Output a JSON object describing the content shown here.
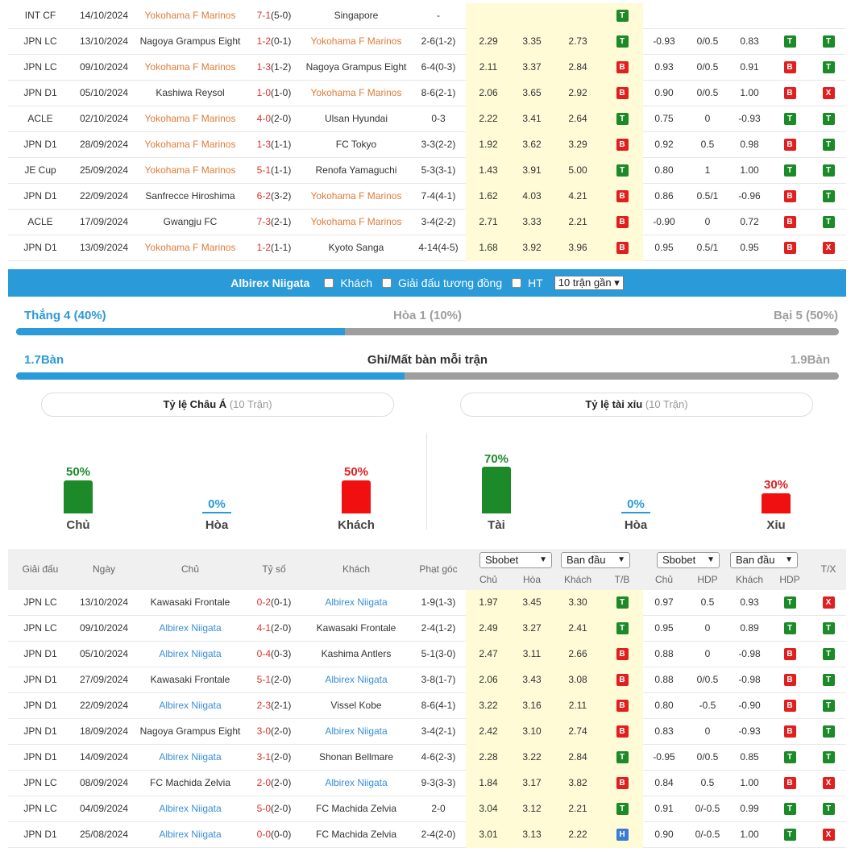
{
  "table_top": {
    "rows": [
      {
        "league": "INT CF",
        "date": "14/10/2024",
        "home": "Yokohama F Marinos",
        "home_hl": true,
        "score": "7-1",
        "ht": "(5-0)",
        "away": "Singapore",
        "away_hl": false,
        "corner": "-",
        "oh": "",
        "od": "",
        "oa": "",
        "tb": "T",
        "ah": "",
        "hdp": "",
        "aa": "",
        "hdp2": "",
        "tx": ""
      },
      {
        "league": "JPN LC",
        "date": "13/10/2024",
        "home": "Nagoya Grampus Eight",
        "home_hl": false,
        "score": "1-2",
        "ht": "(0-1)",
        "away": "Yokohama F Marinos",
        "away_hl": true,
        "corner": "2-6(1-2)",
        "oh": "2.29",
        "od": "3.35",
        "oa": "2.73",
        "tb": "T",
        "ah": "-0.93",
        "hdp": "0/0.5",
        "aa": "0.83",
        "hdp2": "T",
        "tx": "T"
      },
      {
        "league": "JPN LC",
        "date": "09/10/2024",
        "home": "Yokohama F Marinos",
        "home_hl": true,
        "score": "1-3",
        "ht": "(1-2)",
        "away": "Nagoya Grampus Eight",
        "away_hl": false,
        "corner": "6-4(0-3)",
        "oh": "2.11",
        "od": "3.37",
        "oa": "2.84",
        "tb": "B",
        "ah": "0.93",
        "hdp": "0/0.5",
        "aa": "0.91",
        "hdp2": "B",
        "tx": "T"
      },
      {
        "league": "JPN D1",
        "date": "05/10/2024",
        "home": "Kashiwa Reysol",
        "home_hl": false,
        "score": "1-0",
        "ht": "(1-0)",
        "away": "Yokohama F Marinos",
        "away_hl": true,
        "corner": "8-6(2-1)",
        "oh": "2.06",
        "od": "3.65",
        "oa": "2.92",
        "tb": "B",
        "ah": "0.90",
        "hdp": "0/0.5",
        "aa": "1.00",
        "hdp2": "B",
        "tx": "X"
      },
      {
        "league": "ACLE",
        "date": "02/10/2024",
        "home": "Yokohama F Marinos",
        "home_hl": true,
        "score": "4-0",
        "ht": "(2-0)",
        "away": "Ulsan Hyundai",
        "away_hl": false,
        "corner": "0-3",
        "oh": "2.22",
        "od": "3.41",
        "oa": "2.64",
        "tb": "T",
        "ah": "0.75",
        "hdp": "0",
        "aa": "-0.93",
        "hdp2": "T",
        "tx": "T"
      },
      {
        "league": "JPN D1",
        "date": "28/09/2024",
        "home": "Yokohama F Marinos",
        "home_hl": true,
        "score": "1-3",
        "ht": "(1-1)",
        "away": "FC Tokyo",
        "away_hl": false,
        "corner": "3-3(2-2)",
        "oh": "1.92",
        "od": "3.62",
        "oa": "3.29",
        "tb": "B",
        "ah": "0.92",
        "hdp": "0.5",
        "aa": "0.98",
        "hdp2": "B",
        "tx": "T"
      },
      {
        "league": "JE Cup",
        "date": "25/09/2024",
        "home": "Yokohama F Marinos",
        "home_hl": true,
        "score": "5-1",
        "ht": "(1-1)",
        "away": "Renofa Yamaguchi",
        "away_hl": false,
        "corner": "5-3(3-1)",
        "oh": "1.43",
        "od": "3.91",
        "oa": "5.00",
        "tb": "T",
        "ah": "0.80",
        "hdp": "1",
        "aa": "1.00",
        "hdp2": "T",
        "tx": "T"
      },
      {
        "league": "JPN D1",
        "date": "22/09/2024",
        "home": "Sanfrecce Hiroshima",
        "home_hl": false,
        "score": "6-2",
        "ht": "(3-2)",
        "away": "Yokohama F Marinos",
        "away_hl": true,
        "corner": "7-4(4-1)",
        "oh": "1.62",
        "od": "4.03",
        "oa": "4.21",
        "tb": "B",
        "ah": "0.86",
        "hdp": "0.5/1",
        "aa": "-0.96",
        "hdp2": "B",
        "tx": "T"
      },
      {
        "league": "ACLE",
        "date": "17/09/2024",
        "home": "Gwangju FC",
        "home_hl": false,
        "score": "7-3",
        "ht": "(2-1)",
        "away": "Yokohama F Marinos",
        "away_hl": true,
        "corner": "3-4(2-2)",
        "oh": "2.71",
        "od": "3.33",
        "oa": "2.21",
        "tb": "B",
        "ah": "-0.90",
        "hdp": "0",
        "aa": "0.72",
        "hdp2": "B",
        "tx": "T"
      },
      {
        "league": "JPN D1",
        "date": "13/09/2024",
        "home": "Yokohama F Marinos",
        "home_hl": true,
        "score": "1-2",
        "ht": "(1-1)",
        "away": "Kyoto Sanga",
        "away_hl": false,
        "corner": "4-14(4-5)",
        "oh": "1.68",
        "od": "3.92",
        "oa": "3.96",
        "tb": "B",
        "ah": "0.95",
        "hdp": "0.5/1",
        "aa": "0.95",
        "hdp2": "B",
        "tx": "X"
      }
    ]
  },
  "filter_bar": {
    "team": "Albirex Niigata",
    "away_label": "Khách",
    "same_league_label": "Giải đấu tương đồng",
    "ht_label": "HT",
    "recent_select": "10 trận gần"
  },
  "summary": {
    "win_label": "Thắng 4 (40%)",
    "draw_label": "Hòa 1 (10%)",
    "loss_label": "Bại 5 (50%)",
    "win_fraction": 0.4,
    "goals_for": "1.7Bàn",
    "goals_title": "Ghi/Mất bàn mỗi trận",
    "goals_against": "1.9Bàn",
    "goals_fraction": 0.472
  },
  "asian": {
    "title": "Tỷ lệ Châu Á",
    "sub": "(10 Trận)",
    "home_pct": "50%",
    "home_label": "Chủ",
    "home_value": 50,
    "draw_pct": "0%",
    "draw_label": "Hòa",
    "draw_value": 0,
    "away_pct": "50%",
    "away_label": "Khách",
    "away_value": 50
  },
  "overunder": {
    "title": "Tỷ lệ tài xỉu",
    "sub": "(10 Trận)",
    "over_pct": "70%",
    "over_label": "Tài",
    "over_value": 70,
    "draw_pct": "0%",
    "draw_label": "Hòa",
    "draw_value": 0,
    "under_pct": "30%",
    "under_label": "Xỉu",
    "under_value": 30
  },
  "colors": {
    "accent": "#2a9ad9",
    "green": "#1d8a2a",
    "red": "#e02020",
    "highlight": "#fffbd6",
    "team_orange": "#e07b39"
  },
  "header": {
    "league": "Giải đấu",
    "date": "Ngày",
    "home": "Chủ",
    "score": "Tỷ số",
    "away": "Khách",
    "corner": "Phạt góc",
    "book1": "Sbobet",
    "type1": "Ban đầu",
    "book2": "Sbobet",
    "type2": "Ban đầu",
    "h_home": "Chủ",
    "h_draw": "Hòa",
    "h_away": "Khách",
    "h_tb": "T/B",
    "h_home2": "Chủ",
    "h_hdp": "HDP",
    "h_away2": "Khách",
    "h_hdp2": "HDP",
    "h_tx": "T/X"
  },
  "table_bottom": {
    "rows": [
      {
        "league": "JPN LC",
        "date": "13/10/2024",
        "home": "Kawasaki Frontale",
        "home_hl": false,
        "score": "0-2",
        "ht": "(0-1)",
        "away": "Albirex Niigata",
        "away_hl": true,
        "corner": "1-9(1-3)",
        "oh": "1.97",
        "od": "3.45",
        "oa": "3.30",
        "tb": "T",
        "ah": "0.97",
        "hdp": "0.5",
        "aa": "0.93",
        "hdp2": "T",
        "tx": "X"
      },
      {
        "league": "JPN LC",
        "date": "09/10/2024",
        "home": "Albirex Niigata",
        "home_hl": true,
        "score": "4-1",
        "ht": "(2-0)",
        "away": "Kawasaki Frontale",
        "away_hl": false,
        "corner": "2-4(1-2)",
        "oh": "2.49",
        "od": "3.27",
        "oa": "2.41",
        "tb": "T",
        "ah": "0.95",
        "hdp": "0",
        "aa": "0.89",
        "hdp2": "T",
        "tx": "T"
      },
      {
        "league": "JPN D1",
        "date": "05/10/2024",
        "home": "Albirex Niigata",
        "home_hl": true,
        "score": "0-4",
        "ht": "(0-3)",
        "away": "Kashima Antlers",
        "away_hl": false,
        "corner": "5-1(3-0)",
        "oh": "2.47",
        "od": "3.11",
        "oa": "2.66",
        "tb": "B",
        "ah": "0.88",
        "hdp": "0",
        "aa": "-0.98",
        "hdp2": "B",
        "tx": "T"
      },
      {
        "league": "JPN D1",
        "date": "27/09/2024",
        "home": "Kawasaki Frontale",
        "home_hl": false,
        "score": "5-1",
        "ht": "(2-0)",
        "away": "Albirex Niigata",
        "away_hl": true,
        "corner": "3-8(1-7)",
        "oh": "2.06",
        "od": "3.43",
        "oa": "3.08",
        "tb": "B",
        "ah": "0.88",
        "hdp": "0/0.5",
        "aa": "-0.98",
        "hdp2": "B",
        "tx": "T"
      },
      {
        "league": "JPN D1",
        "date": "22/09/2024",
        "home": "Albirex Niigata",
        "home_hl": true,
        "score": "2-3",
        "ht": "(2-1)",
        "away": "Vissel Kobe",
        "away_hl": false,
        "corner": "8-6(4-1)",
        "oh": "3.22",
        "od": "3.16",
        "oa": "2.11",
        "tb": "B",
        "ah": "0.80",
        "hdp": "-0.5",
        "aa": "-0.90",
        "hdp2": "B",
        "tx": "T"
      },
      {
        "league": "JPN D1",
        "date": "18/09/2024",
        "home": "Nagoya Grampus Eight",
        "home_hl": false,
        "score": "3-0",
        "ht": "(2-0)",
        "away": "Albirex Niigata",
        "away_hl": true,
        "corner": "3-4(2-1)",
        "oh": "2.42",
        "od": "3.10",
        "oa": "2.74",
        "tb": "B",
        "ah": "0.83",
        "hdp": "0",
        "aa": "-0.93",
        "hdp2": "B",
        "tx": "T"
      },
      {
        "league": "JPN D1",
        "date": "14/09/2024",
        "home": "Albirex Niigata",
        "home_hl": true,
        "score": "3-1",
        "ht": "(2-0)",
        "away": "Shonan Bellmare",
        "away_hl": false,
        "corner": "4-6(2-3)",
        "oh": "2.28",
        "od": "3.22",
        "oa": "2.84",
        "tb": "T",
        "ah": "-0.95",
        "hdp": "0/0.5",
        "aa": "0.85",
        "hdp2": "T",
        "tx": "T"
      },
      {
        "league": "JPN LC",
        "date": "08/09/2024",
        "home": "FC Machida Zelvia",
        "home_hl": false,
        "score": "2-0",
        "ht": "(2-0)",
        "away": "Albirex Niigata",
        "away_hl": true,
        "corner": "9-3(3-3)",
        "oh": "1.84",
        "od": "3.17",
        "oa": "3.82",
        "tb": "B",
        "ah": "0.84",
        "hdp": "0.5",
        "aa": "1.00",
        "hdp2": "B",
        "tx": "X"
      },
      {
        "league": "JPN LC",
        "date": "04/09/2024",
        "home": "Albirex Niigata",
        "home_hl": true,
        "score": "5-0",
        "ht": "(2-0)",
        "away": "FC Machida Zelvia",
        "away_hl": false,
        "corner": "2-0",
        "oh": "3.04",
        "od": "3.12",
        "oa": "2.21",
        "tb": "T",
        "ah": "0.91",
        "hdp": "0/-0.5",
        "aa": "0.99",
        "hdp2": "T",
        "tx": "T"
      },
      {
        "league": "JPN D1",
        "date": "25/08/2024",
        "home": "Albirex Niigata",
        "home_hl": true,
        "score": "0-0",
        "ht": "(0-0)",
        "away": "FC Machida Zelvia",
        "away_hl": false,
        "corner": "2-4(2-0)",
        "oh": "3.01",
        "od": "3.13",
        "oa": "2.22",
        "tb": "H",
        "ah": "0.90",
        "hdp": "0/-0.5",
        "aa": "1.00",
        "hdp2": "T",
        "tx": "X"
      }
    ]
  }
}
